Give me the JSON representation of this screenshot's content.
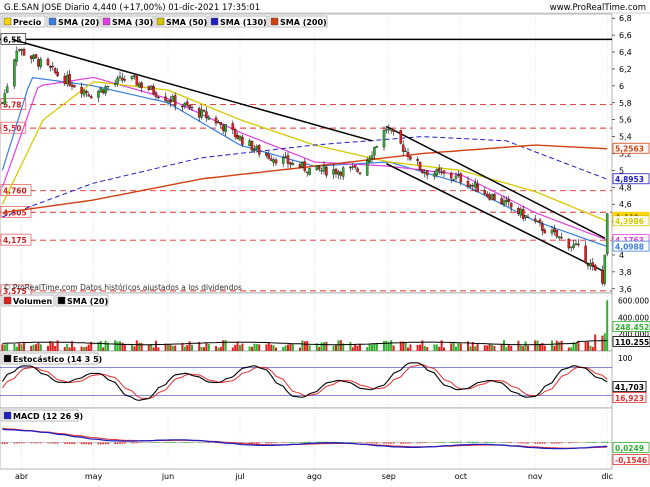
{
  "header": {
    "title": "G.E.SAN JOSE Diario 4,440 (+17,00%) 01-dic-2021 17:35:01",
    "site": "www.ProRealTime.com"
  },
  "footer_note": "© ProRealTime.com  Datos históricos ajustados a los dividendos",
  "colors": {
    "sma20": "#3a7fe0",
    "sma30": "#e040e0",
    "sma50": "#d8c800",
    "sma130": "#2020c0",
    "sma200": "#d04010",
    "price": "#ffd400",
    "up": "#30b030",
    "down": "#e02020"
  },
  "chart_data": [
    {
      "type": "candlestick",
      "title": "Precio",
      "legend": [
        "Precio",
        "SMA (20)",
        "SMA (30)",
        "SMA (50)",
        "SMA (130)",
        "SMA (200)"
      ],
      "x_ticks": [
        "abr",
        "may",
        "jun",
        "jul",
        "ago",
        "sep",
        "oct",
        "nov",
        "dic"
      ],
      "y_ticks": [
        "6,8",
        "6,6",
        "6,4",
        "6,2",
        "6",
        "5,8",
        "5,6",
        "5,4",
        "5,2",
        "5",
        "4,8",
        "4,6",
        "4,4",
        "4,2",
        "4",
        "3,8",
        "3,6"
      ],
      "ylim": [
        3.55,
        6.85
      ],
      "support_resistance_lines": [
        {
          "label": "6,55",
          "value": 6.55
        },
        {
          "label": "5,78",
          "value": 5.78
        },
        {
          "label": "5,50",
          "value": 5.5
        },
        {
          "label": "4,760",
          "value": 4.76
        },
        {
          "label": "4,505",
          "value": 4.505
        },
        {
          "label": "4,175",
          "value": 4.175
        },
        {
          "label": "3,575",
          "value": 3.575
        }
      ],
      "trend_lines": [
        {
          "from": [
            "2021-03-28",
            6.55
          ],
          "to": [
            "2021-08-25",
            5.35
          ]
        },
        {
          "from": [
            "2021-08-31",
            5.52
          ],
          "to": [
            "2021-11-30",
            4.2
          ]
        },
        {
          "from": [
            "2021-08-31",
            5.08
          ],
          "to": [
            "2021-11-30",
            3.8
          ]
        }
      ],
      "current_labels": [
        {
          "name": "SMA (200)",
          "value": "5,2563"
        },
        {
          "name": "SMA (130)",
          "value": "4,8953"
        },
        {
          "name": "Precio",
          "value": "4,440"
        },
        {
          "name": "SMA (50)",
          "value": "4,3986"
        },
        {
          "name": "SMA (30)",
          "value": "4,1763"
        },
        {
          "name": "SMA (20)",
          "value": "4,0988"
        }
      ],
      "series_anchors": [
        {
          "name": "Precio",
          "points": [
            [
              "2021-03-24",
              5.8
            ],
            [
              "2021-03-30",
              6.45
            ],
            [
              "2021-04-15",
              6.15
            ],
            [
              "2021-04-30",
              5.9
            ],
            [
              "2021-05-15",
              6.1
            ],
            [
              "2021-06-01",
              5.85
            ],
            [
              "2021-06-20",
              5.6
            ],
            [
              "2021-07-10",
              5.2
            ],
            [
              "2021-07-31",
              5.0
            ],
            [
              "2021-08-20",
              5.0
            ],
            [
              "2021-08-31",
              5.5
            ],
            [
              "2021-09-15",
              5.0
            ],
            [
              "2021-10-01",
              4.9
            ],
            [
              "2021-10-20",
              4.6
            ],
            [
              "2021-11-05",
              4.3
            ],
            [
              "2021-11-20",
              4.05
            ],
            [
              "2021-11-29",
              3.66
            ],
            [
              "2021-12-01",
              4.44
            ]
          ]
        },
        {
          "name": "SMA (20)",
          "points": [
            [
              "2021-03-24",
              5.0
            ],
            [
              "2021-04-05",
              6.1
            ],
            [
              "2021-05-01",
              6.0
            ],
            [
              "2021-06-01",
              5.8
            ],
            [
              "2021-07-01",
              5.3
            ],
            [
              "2021-08-01",
              5.05
            ],
            [
              "2021-09-01",
              5.1
            ],
            [
              "2021-10-01",
              4.85
            ],
            [
              "2021-11-01",
              4.4
            ],
            [
              "2021-12-01",
              4.0988
            ]
          ]
        },
        {
          "name": "SMA (30)",
          "points": [
            [
              "2021-03-24",
              4.8
            ],
            [
              "2021-04-08",
              6.0
            ],
            [
              "2021-05-01",
              6.1
            ],
            [
              "2021-06-01",
              5.85
            ],
            [
              "2021-07-01",
              5.45
            ],
            [
              "2021-08-01",
              5.1
            ],
            [
              "2021-09-01",
              5.05
            ],
            [
              "2021-10-01",
              4.95
            ],
            [
              "2021-11-01",
              4.5
            ],
            [
              "2021-12-01",
              4.1763
            ]
          ]
        },
        {
          "name": "SMA (50)",
          "points": [
            [
              "2021-03-24",
              4.6
            ],
            [
              "2021-04-10",
              5.6
            ],
            [
              "2021-05-01",
              6.05
            ],
            [
              "2021-06-01",
              5.95
            ],
            [
              "2021-07-01",
              5.6
            ],
            [
              "2021-08-01",
              5.3
            ],
            [
              "2021-09-01",
              5.1
            ],
            [
              "2021-10-01",
              5.0
            ],
            [
              "2021-11-01",
              4.75
            ],
            [
              "2021-12-01",
              4.3986
            ]
          ]
        },
        {
          "name": "SMA (130)",
          "points": [
            [
              "2021-03-24",
              4.45
            ],
            [
              "2021-05-01",
              4.85
            ],
            [
              "2021-06-15",
              5.15
            ],
            [
              "2021-08-01",
              5.3
            ],
            [
              "2021-09-15",
              5.4
            ],
            [
              "2021-10-20",
              5.35
            ],
            [
              "2021-12-01",
              4.8953
            ]
          ]
        },
        {
          "name": "SMA (200)",
          "points": [
            [
              "2021-03-24",
              4.5
            ],
            [
              "2021-05-01",
              4.65
            ],
            [
              "2021-06-15",
              4.9
            ],
            [
              "2021-08-01",
              5.05
            ],
            [
              "2021-09-15",
              5.2
            ],
            [
              "2021-11-01",
              5.3
            ],
            [
              "2021-12-01",
              5.2563
            ]
          ]
        }
      ]
    },
    {
      "type": "bar",
      "title": "Volumen",
      "legend": [
        "Volumen",
        "SMA (20)"
      ],
      "y_ticks": [
        "600.000",
        "400.000",
        "200.000"
      ],
      "current_labels": [
        {
          "name": "Volumen",
          "value": "248.452"
        },
        {
          "name": "SMA (20)",
          "value": "110.255"
        }
      ]
    },
    {
      "type": "line",
      "title": "Estocástico (14 3 5)",
      "y_ticks": [
        "100"
      ],
      "ylim": [
        0,
        100
      ],
      "levels": [
        80,
        20
      ],
      "current_labels": [
        {
          "name": "%K",
          "value": "41,703"
        },
        {
          "name": "%D",
          "value": "16,923"
        }
      ]
    },
    {
      "type": "line",
      "title": "MACD (12 26 9)",
      "current_labels": [
        {
          "name": "MACD",
          "value": "0,0249"
        },
        {
          "name": "Signal",
          "value": "-0,1546"
        }
      ]
    }
  ]
}
